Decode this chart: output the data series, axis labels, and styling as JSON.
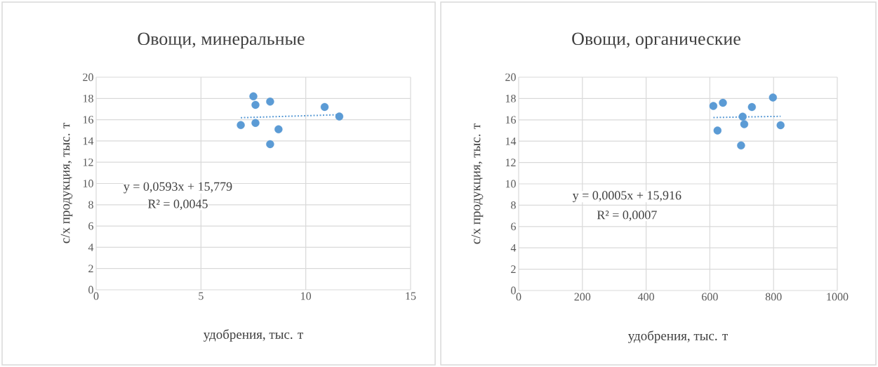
{
  "chart_data": [
    {
      "type": "scatter",
      "title": "Овощи, минеральные",
      "xlabel": "удобрения, тыс. т",
      "ylabel": "с/х продукция, тыс. т",
      "xlim": [
        0,
        15
      ],
      "xticks": [
        0,
        5,
        10,
        15
      ],
      "ylim": [
        0,
        20
      ],
      "yticks": [
        0,
        2,
        4,
        6,
        8,
        10,
        12,
        14,
        16,
        18,
        20
      ],
      "grid": true,
      "annotations": [
        "y = 0,0593x + 15,779",
        "R² = 0,0045"
      ],
      "series": [
        {
          "color": "#5b9bd5",
          "marker": "circle",
          "x": [
            7.5,
            7.6,
            8.3,
            10.9,
            11.6,
            6.9,
            7.6,
            8.7,
            8.3
          ],
          "values": [
            18.2,
            17.4,
            17.7,
            17.2,
            16.3,
            15.5,
            15.7,
            15.1,
            13.7
          ]
        },
        {
          "type": "line",
          "color": "#5b9bd5",
          "marker": "none",
          "line_style": "dotted",
          "x": [
            6.9,
            11.6
          ],
          "values": [
            16.19,
            16.47
          ]
        }
      ]
    },
    {
      "type": "scatter",
      "title": "Овощи, органические",
      "xlabel": "удобрения, тыс. т",
      "ylabel": "с/х продукция, тыс. т",
      "xlim": [
        0,
        1000
      ],
      "xticks": [
        0,
        200,
        400,
        600,
        800,
        1000
      ],
      "ylim": [
        0,
        20
      ],
      "yticks": [
        0,
        2,
        4,
        6,
        8,
        10,
        12,
        14,
        16,
        18,
        20
      ],
      "grid": true,
      "annotations": [
        "y = 0,0005x + 15,916",
        "R² = 0,0007"
      ],
      "series": [
        {
          "color": "#5b9bd5",
          "marker": "circle",
          "x": [
            611,
            641,
            798,
            732,
            703,
            708,
            624,
            822,
            698
          ],
          "values": [
            17.3,
            17.6,
            18.1,
            17.2,
            16.3,
            15.6,
            15.0,
            15.5,
            13.6
          ]
        },
        {
          "type": "line",
          "color": "#5b9bd5",
          "marker": "none",
          "line_style": "dotted",
          "x": [
            611,
            822
          ],
          "values": [
            16.22,
            16.33
          ]
        }
      ]
    }
  ]
}
